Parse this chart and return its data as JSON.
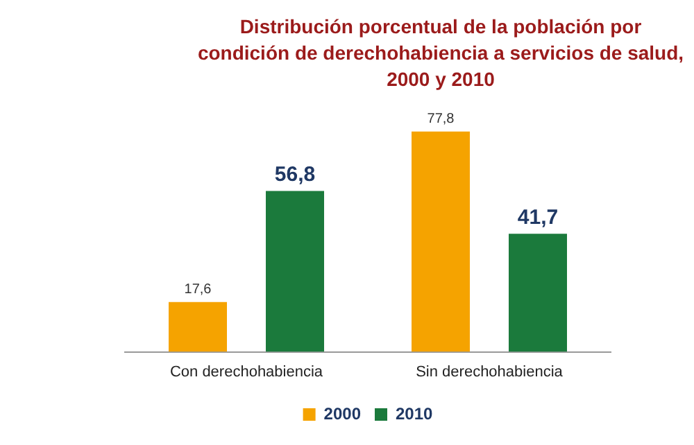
{
  "chart_data": {
    "type": "bar",
    "title": "Distribución porcentual de la población por condición de derechohabiencia a servicios de salud, 2000 y 2010",
    "categories": [
      "Con derechohabiencia",
      "Sin derechohabiencia"
    ],
    "series": [
      {
        "name": "2000",
        "color": "#f5a300",
        "values": [
          17.6,
          77.8
        ],
        "value_labels": [
          "17,6",
          "77,8"
        ]
      },
      {
        "name": "2010",
        "color": "#1b7a3c",
        "values": [
          56.8,
          41.7
        ],
        "value_labels": [
          "56,8",
          "41,7"
        ]
      }
    ],
    "grid": false,
    "legend": "bottom"
  }
}
